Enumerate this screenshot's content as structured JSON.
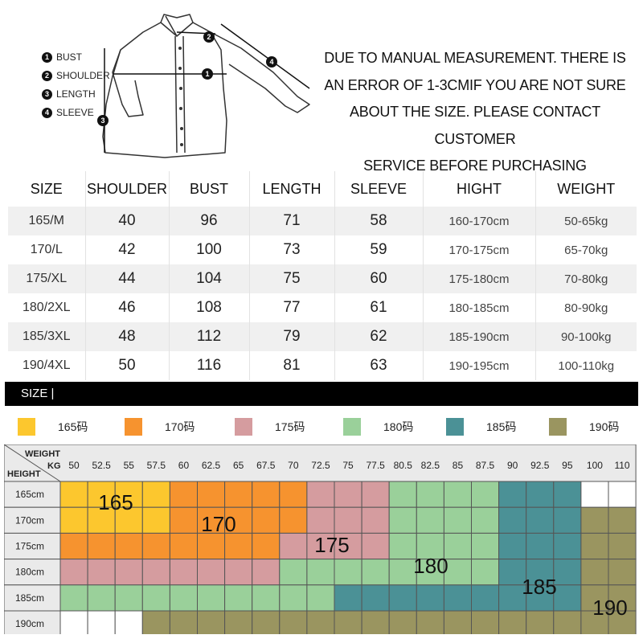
{
  "legend": [
    {
      "num": "1",
      "label": "BUST"
    },
    {
      "num": "2",
      "label": "SHOULDER"
    },
    {
      "num": "3",
      "label": "LENGTH"
    },
    {
      "num": "4",
      "label": "SLEEVE"
    }
  ],
  "notice": [
    "DUE TO MANUAL MEASUREMENT. THERE IS",
    "AN ERROR OF 1-3CMIF YOU ARE NOT SURE",
    "ABOUT THE SIZE. PLEASE CONTACT CUSTOMER",
    "SERVICE BEFORE PURCHASING"
  ],
  "size_table": {
    "headers": [
      "SIZE",
      "SHOULDER",
      "BUST",
      "LENGTH",
      "SLEEVE",
      "HIGHT",
      "WEIGHT"
    ],
    "rows": [
      [
        "165/M",
        "40",
        "96",
        "71",
        "58",
        "160-170cm",
        "50-65kg"
      ],
      [
        "170/L",
        "42",
        "100",
        "73",
        "59",
        "170-175cm",
        "65-70kg"
      ],
      [
        "175/XL",
        "44",
        "104",
        "75",
        "60",
        "175-180cm",
        "70-80kg"
      ],
      [
        "180/2XL",
        "46",
        "108",
        "77",
        "61",
        "180-185cm",
        "80-90kg"
      ],
      [
        "185/3XL",
        "48",
        "112",
        "79",
        "62",
        "185-190cm",
        "90-100kg"
      ],
      [
        "190/4XL",
        "50",
        "116",
        "81",
        "63",
        "190-195cm",
        "100-110kg"
      ]
    ]
  },
  "size_bar_label": "SIZE |",
  "color_legend": [
    {
      "label": "165码",
      "color": "#fcc72e"
    },
    {
      "label": "170码",
      "color": "#f6932f"
    },
    {
      "label": "175码",
      "color": "#d59c9f"
    },
    {
      "label": "180码",
      "color": "#9ad09a"
    },
    {
      "label": "185码",
      "color": "#4b9196"
    },
    {
      "label": "190码",
      "color": "#9a9560"
    }
  ],
  "grid": {
    "corner_weight": "WEIGHT",
    "corner_kg": "KG",
    "corner_height": "HEIGHT",
    "weights": [
      "50",
      "52.5",
      "55",
      "57.5",
      "60",
      "62.5",
      "65",
      "67.5",
      "70",
      "72.5",
      "75",
      "77.5",
      "80.5",
      "82.5",
      "85",
      "87.5",
      "90",
      "92.5",
      "95",
      "100",
      "110"
    ],
    "heights": [
      "165cm",
      "170cm",
      "175cm",
      "180cm",
      "185cm",
      "190cm"
    ],
    "cells": [
      [
        0,
        0,
        0,
        0,
        1,
        1,
        1,
        1,
        1,
        2,
        2,
        2,
        3,
        3,
        3,
        3,
        4,
        4,
        4,
        -1,
        -1
      ],
      [
        0,
        0,
        0,
        0,
        1,
        1,
        1,
        1,
        1,
        2,
        2,
        2,
        3,
        3,
        3,
        3,
        4,
        4,
        4,
        5,
        5
      ],
      [
        1,
        1,
        1,
        1,
        1,
        1,
        1,
        1,
        2,
        2,
        2,
        2,
        3,
        3,
        3,
        3,
        4,
        4,
        4,
        5,
        5
      ],
      [
        2,
        2,
        2,
        2,
        2,
        2,
        2,
        2,
        3,
        3,
        3,
        3,
        3,
        3,
        3,
        3,
        4,
        4,
        4,
        5,
        5
      ],
      [
        3,
        3,
        3,
        3,
        3,
        3,
        3,
        3,
        3,
        3,
        4,
        4,
        4,
        4,
        4,
        4,
        4,
        4,
        4,
        5,
        5
      ],
      [
        -1,
        -1,
        -1,
        5,
        5,
        5,
        5,
        5,
        5,
        5,
        5,
        5,
        5,
        5,
        5,
        5,
        5,
        5,
        5,
        5,
        5
      ]
    ],
    "region_labels": [
      "165",
      "170",
      "175",
      "180",
      "185",
      "190"
    ]
  }
}
